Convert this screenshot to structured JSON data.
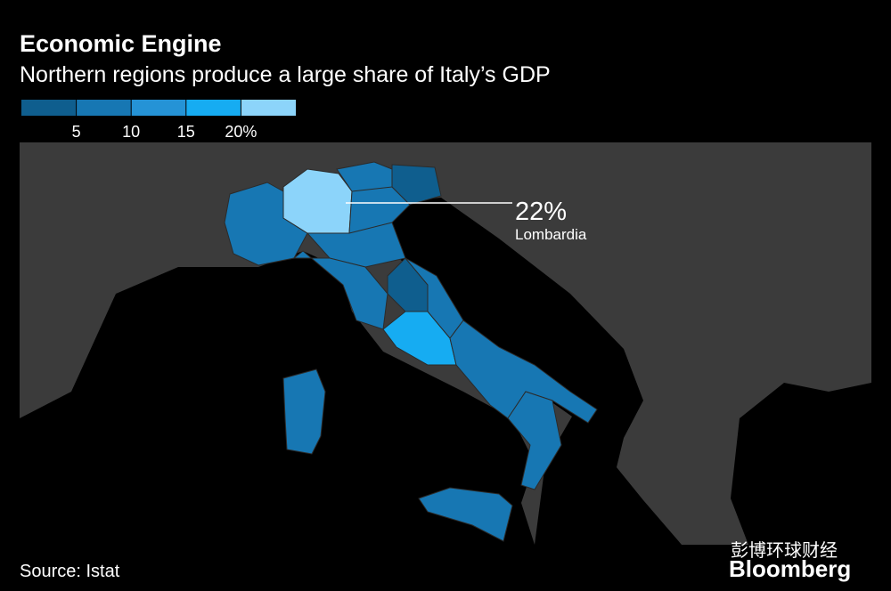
{
  "header": {
    "title": "Economic Engine",
    "subtitle": "Northern regions produce a large share of Italy’s GDP"
  },
  "legend": {
    "colors": [
      "#0f5e8e",
      "#1777b3",
      "#2593d6",
      "#16acf2",
      "#8cd4fa"
    ],
    "xlim": [
      0,
      25
    ],
    "ticks": [
      5,
      10,
      15,
      {
        "value": 20,
        "label": "20%"
      }
    ]
  },
  "annotation": {
    "value": 22,
    "label": "22%",
    "region": "Lombardia"
  },
  "source": "Source: Istat",
  "watermark": {
    "wechat": "彭博环球财经",
    "brand": "Bloomberg"
  }
}
